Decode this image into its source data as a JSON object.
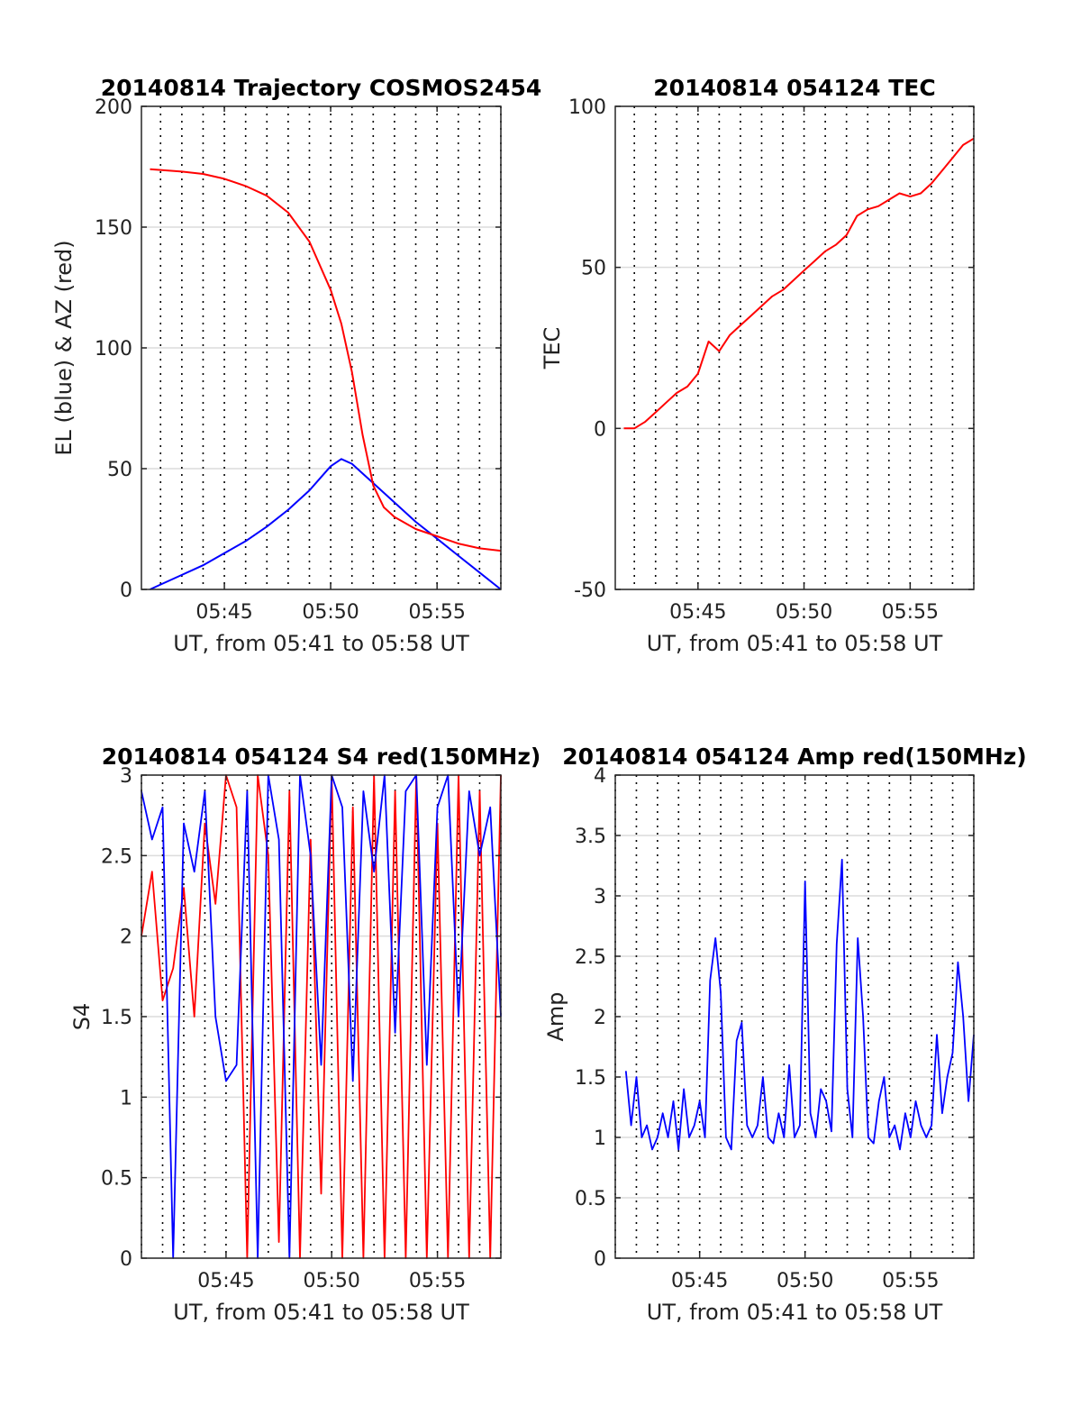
{
  "chart_data": [
    {
      "type": "line",
      "title": "20140814 Trajectory COSMOS2454",
      "xlabel": "UT, from 05:41 to 05:58 UT",
      "ylabel": "EL (blue) & AZ (red)",
      "xlim": [
        5.6833,
        5.9667
      ],
      "ylim": [
        0,
        200
      ],
      "xticks": [
        5.75,
        5.8333,
        5.9167
      ],
      "xticklabels": [
        "05:45",
        "05:50",
        "05:55"
      ],
      "yticks": [
        0,
        50,
        100,
        150,
        200
      ],
      "yticklabels": [
        "0",
        "50",
        "100",
        "150",
        "200"
      ],
      "grid": true,
      "series": [
        {
          "color": "#0000ff",
          "x": [
            5.6917,
            5.7,
            5.7167,
            5.7333,
            5.75,
            5.7667,
            5.7833,
            5.8,
            5.8167,
            5.825,
            5.8333,
            5.8417,
            5.85,
            5.8667,
            5.8833,
            5.9,
            5.9167,
            5.9333,
            5.95,
            5.9667
          ],
          "y": [
            0,
            2,
            6,
            10,
            15,
            20,
            26,
            33,
            41,
            46,
            51,
            54,
            52,
            44,
            36,
            28,
            21,
            14,
            7,
            0
          ]
        },
        {
          "color": "#ff0000",
          "x": [
            5.6917,
            5.7167,
            5.7333,
            5.75,
            5.7667,
            5.7833,
            5.8,
            5.8167,
            5.8333,
            5.8417,
            5.85,
            5.8583,
            5.8667,
            5.875,
            5.8833,
            5.9,
            5.9167,
            5.9333,
            5.95,
            5.9667
          ],
          "y": [
            174,
            173,
            172,
            170,
            167,
            163,
            156,
            144,
            124,
            110,
            90,
            64,
            43,
            34,
            30,
            25,
            22,
            19,
            17,
            16
          ]
        }
      ]
    },
    {
      "type": "line",
      "title": "20140814 054124 TEC",
      "xlabel": "UT, from 05:41 to 05:58 UT",
      "ylabel": "TEC",
      "xlim": [
        5.6833,
        5.9667
      ],
      "ylim": [
        -50,
        100
      ],
      "xticks": [
        5.75,
        5.8333,
        5.9167
      ],
      "xticklabels": [
        "05:45",
        "05:50",
        "05:55"
      ],
      "yticks": [
        -50,
        0,
        50,
        100
      ],
      "yticklabels": [
        "-50",
        "0",
        "50",
        "100"
      ],
      "grid": true,
      "series": [
        {
          "color": "#ff0000",
          "x": [
            5.6917,
            5.7,
            5.7083,
            5.7167,
            5.725,
            5.7333,
            5.7417,
            5.75,
            5.7583,
            5.7667,
            5.775,
            5.7833,
            5.7917,
            5.8,
            5.8083,
            5.8167,
            5.825,
            5.8333,
            5.8417,
            5.85,
            5.8583,
            5.8667,
            5.875,
            5.8833,
            5.8917,
            5.9,
            5.9083,
            5.9167,
            5.925,
            5.9333,
            5.9417,
            5.95,
            5.9583,
            5.9667
          ],
          "y": [
            0,
            0,
            2,
            5,
            8,
            11,
            13,
            17,
            27,
            24,
            29,
            32,
            35,
            38,
            41,
            43,
            46,
            49,
            52,
            55,
            57,
            60,
            66,
            68,
            69,
            71,
            73,
            72,
            73,
            76,
            80,
            84,
            88,
            90
          ]
        }
      ]
    },
    {
      "type": "line",
      "title": "20140814 054124 S4 red(150MHz)",
      "xlabel": "UT, from 05:41 to 05:58 UT",
      "ylabel": "S4",
      "xlim": [
        5.6833,
        5.9667
      ],
      "ylim": [
        0,
        3
      ],
      "xticks": [
        5.75,
        5.8333,
        5.9167
      ],
      "xticklabels": [
        "05:45",
        "05:50",
        "05:55"
      ],
      "yticks": [
        0,
        0.5,
        1,
        1.5,
        2,
        2.5,
        3
      ],
      "yticklabels": [
        "0",
        "0.5",
        "1",
        "1.5",
        "2",
        "2.5",
        "3"
      ],
      "grid": true,
      "series": [
        {
          "color": "#ff0000",
          "x": [
            5.6833,
            5.6917,
            5.7,
            5.7083,
            5.7167,
            5.725,
            5.7333,
            5.7417,
            5.75,
            5.7583,
            5.7667,
            5.775,
            5.7833,
            5.7917,
            5.8,
            5.8083,
            5.8167,
            5.825,
            5.8333,
            5.8417,
            5.85,
            5.8583,
            5.8667,
            5.875,
            5.8833,
            5.8917,
            5.9,
            5.9083,
            5.9167,
            5.925,
            5.9333,
            5.9417,
            5.95,
            5.9583,
            5.9667
          ],
          "y": [
            2.0,
            2.4,
            1.6,
            1.8,
            2.3,
            1.5,
            2.7,
            2.2,
            3.0,
            2.8,
            0.0,
            3.0,
            2.5,
            0.1,
            2.9,
            0.0,
            2.6,
            0.4,
            3.0,
            0.0,
            2.8,
            0.0,
            3.0,
            0.0,
            2.9,
            0.0,
            3.0,
            0.0,
            2.7,
            0.0,
            3.0,
            0.0,
            2.9,
            0.0,
            3.0
          ]
        },
        {
          "color": "#0000ff",
          "x": [
            5.6833,
            5.6917,
            5.7,
            5.7083,
            5.7167,
            5.725,
            5.7333,
            5.7417,
            5.75,
            5.7583,
            5.7667,
            5.775,
            5.7833,
            5.7917,
            5.8,
            5.8083,
            5.8167,
            5.825,
            5.8333,
            5.8417,
            5.85,
            5.8583,
            5.8667,
            5.875,
            5.8833,
            5.8917,
            5.9,
            5.9083,
            5.9167,
            5.925,
            5.9333,
            5.9417,
            5.95,
            5.9583,
            5.9667
          ],
          "y": [
            2.9,
            2.6,
            2.8,
            0.0,
            2.7,
            2.4,
            2.9,
            1.5,
            1.1,
            1.2,
            2.9,
            0.0,
            3.0,
            2.6,
            0.0,
            3.0,
            2.5,
            1.2,
            3.0,
            2.8,
            1.1,
            2.9,
            2.4,
            3.0,
            1.4,
            2.9,
            3.0,
            1.2,
            2.8,
            3.0,
            1.5,
            2.9,
            2.5,
            2.8,
            1.5
          ]
        }
      ]
    },
    {
      "type": "line",
      "title": "20140814 054124 Amp red(150MHz)",
      "xlabel": "UT, from 05:41 to 05:58 UT",
      "ylabel": "Amp",
      "xlim": [
        5.6833,
        5.9667
      ],
      "ylim": [
        0,
        4
      ],
      "xticks": [
        5.75,
        5.8333,
        5.9167
      ],
      "xticklabels": [
        "05:45",
        "05:50",
        "05:55"
      ],
      "yticks": [
        0,
        0.5,
        1,
        1.5,
        2,
        2.5,
        3,
        3.5,
        4
      ],
      "yticklabels": [
        "0",
        "0.5",
        "1",
        "1.5",
        "2",
        "2.5",
        "3",
        "3.5",
        "4"
      ],
      "grid": true,
      "series": [
        {
          "color": "#0000ff",
          "x": [
            5.6917,
            5.6958,
            5.7,
            5.7042,
            5.7083,
            5.7125,
            5.7167,
            5.7208,
            5.725,
            5.7292,
            5.7333,
            5.7375,
            5.7417,
            5.7458,
            5.75,
            5.7542,
            5.7583,
            5.7625,
            5.7667,
            5.7708,
            5.775,
            5.7792,
            5.7833,
            5.7875,
            5.7917,
            5.7958,
            5.8,
            5.8042,
            5.8083,
            5.8125,
            5.8167,
            5.8208,
            5.825,
            5.8292,
            5.8333,
            5.8375,
            5.8417,
            5.8458,
            5.85,
            5.8542,
            5.8583,
            5.8625,
            5.8667,
            5.8708,
            5.875,
            5.8792,
            5.8833,
            5.8875,
            5.8917,
            5.8958,
            5.9,
            5.9042,
            5.9083,
            5.9125,
            5.9167,
            5.9208,
            5.925,
            5.9292,
            5.9333,
            5.9375,
            5.9417,
            5.9458,
            5.95,
            5.9542,
            5.9583,
            5.9625,
            5.9667
          ],
          "y": [
            1.55,
            1.1,
            1.5,
            1.0,
            1.1,
            0.9,
            1.0,
            1.2,
            1.0,
            1.3,
            0.9,
            1.4,
            1.0,
            1.1,
            1.3,
            1.0,
            2.3,
            2.65,
            2.2,
            1.0,
            0.9,
            1.8,
            1.95,
            1.1,
            1.0,
            1.1,
            1.5,
            1.0,
            0.95,
            1.2,
            1.0,
            1.6,
            1.0,
            1.1,
            3.12,
            1.2,
            1.0,
            1.4,
            1.3,
            1.05,
            2.6,
            3.3,
            1.4,
            1.0,
            2.65,
            2.0,
            1.0,
            0.95,
            1.3,
            1.5,
            1.0,
            1.1,
            0.9,
            1.2,
            1.0,
            1.3,
            1.1,
            1.0,
            1.1,
            1.85,
            1.2,
            1.5,
            1.7,
            2.45,
            2.0,
            1.3,
            1.85
          ]
        }
      ]
    }
  ]
}
